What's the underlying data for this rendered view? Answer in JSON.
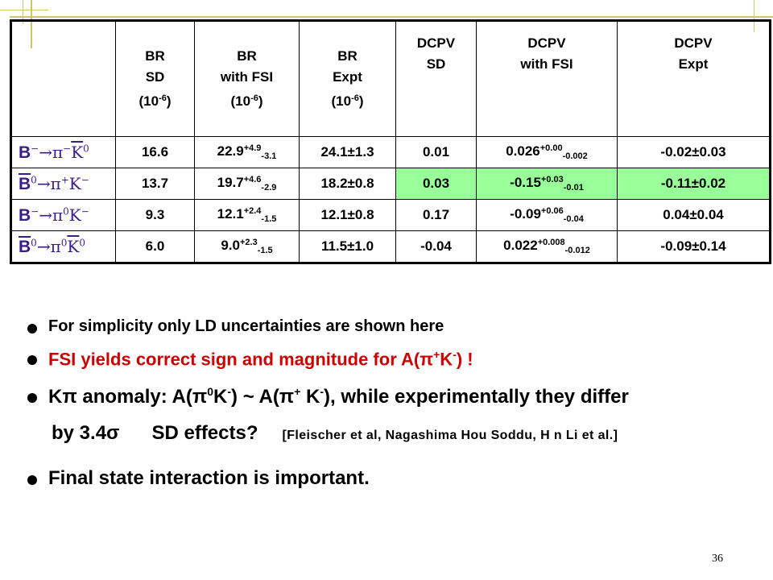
{
  "table": {
    "headers": [
      "",
      "BR\nSD\n(10-6)",
      "BR\nwith FSI\n(10-6)",
      "BR\nExpt\n(10-6)",
      "DCPV\nSD",
      "DCPV\nwith FSI",
      "DCPV\nExpt"
    ],
    "header_lines": {
      "br_sd": [
        "BR",
        "SD",
        "(10",
        "-6",
        ")"
      ],
      "br_fsi": [
        "BR",
        "with FSI",
        "(10",
        "-6",
        ")"
      ],
      "br_expt": [
        "BR",
        "Expt",
        "(10",
        "-6",
        ")"
      ],
      "dcpv_sd": [
        "DCPV",
        "SD"
      ],
      "dcpv_fsi": [
        "DCPV",
        "with FSI"
      ],
      "dcpv_expt": [
        "DCPV",
        "Expt"
      ]
    },
    "rows": [
      {
        "process": {
          "B": "B",
          "B_sup": "−",
          "rest": "→π",
          "rest_sup": "−",
          "K": "K",
          "K_sup": "0",
          "overbar": "K"
        },
        "br_sd": "16.6",
        "br_fsi": {
          "value": "22.9",
          "up": "+4.9",
          "down": "-3.1"
        },
        "br_expt": "24.1±1.3",
        "dcpv_sd": "0.01",
        "dcpv_fsi": {
          "value": "0.026",
          "up": "+0.00",
          "down": "-0.002"
        },
        "dcpv_expt": "-0.02±0.03",
        "highlight": false
      },
      {
        "process": {
          "B": "B",
          "B_sup": "0",
          "rest": "→π",
          "rest_sup": "+",
          "K": "K",
          "K_sup": "−",
          "overbar": "B"
        },
        "br_sd": "13.7",
        "br_fsi": {
          "value": "19.7",
          "up": "+4.6",
          "down": "-2.9"
        },
        "br_expt": "18.2±0.8",
        "dcpv_sd": "0.03",
        "dcpv_fsi": {
          "value": "-0.15",
          "up": "+0.03",
          "down": "-0.01"
        },
        "dcpv_expt": "-0.11±0.02",
        "highlight": true
      },
      {
        "process": {
          "B": "B",
          "B_sup": "−",
          "rest": "→π",
          "rest_sup": "0",
          "K": "K",
          "K_sup": "−",
          "overbar": ""
        },
        "br_sd": "9.3",
        "br_fsi": {
          "value": "12.1",
          "up": "+2.4",
          "down": "-1.5"
        },
        "br_expt": "12.1±0.8",
        "dcpv_sd": "0.17",
        "dcpv_fsi": {
          "value": "-0.09",
          "up": "+0.06",
          "down": "-0.04"
        },
        "dcpv_expt": "0.04±0.04",
        "highlight": false
      },
      {
        "process": {
          "B": "B",
          "B_sup": "0",
          "rest": "→π",
          "rest_sup": "0",
          "K": "K",
          "K_sup": "0",
          "overbar": "both"
        },
        "br_sd": "6.0",
        "br_fsi": {
          "value": "9.0",
          "up": "+2.3",
          "down": "-1.5"
        },
        "br_expt": "11.5±1.0",
        "dcpv_sd": "-0.04",
        "dcpv_fsi": {
          "value": "0.022",
          "up": "+0.008",
          "down": "-0.012"
        },
        "dcpv_expt": "-0.09±0.14",
        "highlight": false
      }
    ]
  },
  "bullets": {
    "b1": "For simplicity only LD uncertainties are shown here",
    "b2_pre": "FSI yields correct sign and magnitude for A(π",
    "b2_sup1": "+",
    "b2_mid": "K",
    "b2_sup2": "-",
    "b2_post": ") !",
    "b3_a": "Kπ anomaly: A(π",
    "b3_sup1": "0",
    "b3_b": "K",
    "b3_sup2": "-",
    "b3_c": ") ~ A(π",
    "b3_sup3": "+",
    "b3_d": " K",
    "b3_sup4": "-",
    "b3_e": "), while experimentally they differ",
    "b4_a": "by 3.4σ",
    "b4_b": "SD effects?",
    "b4_refs": "[Fleischer et al, Nagashima Hou Soddu, H n Li et al.]",
    "b5": "Final state interaction is important."
  },
  "page_number": "36",
  "colors": {
    "highlight_green": "#99ff99",
    "process_color": "#3a1d88",
    "emphasis_red": "#cc0000",
    "decor_line": "#cfc66a"
  }
}
